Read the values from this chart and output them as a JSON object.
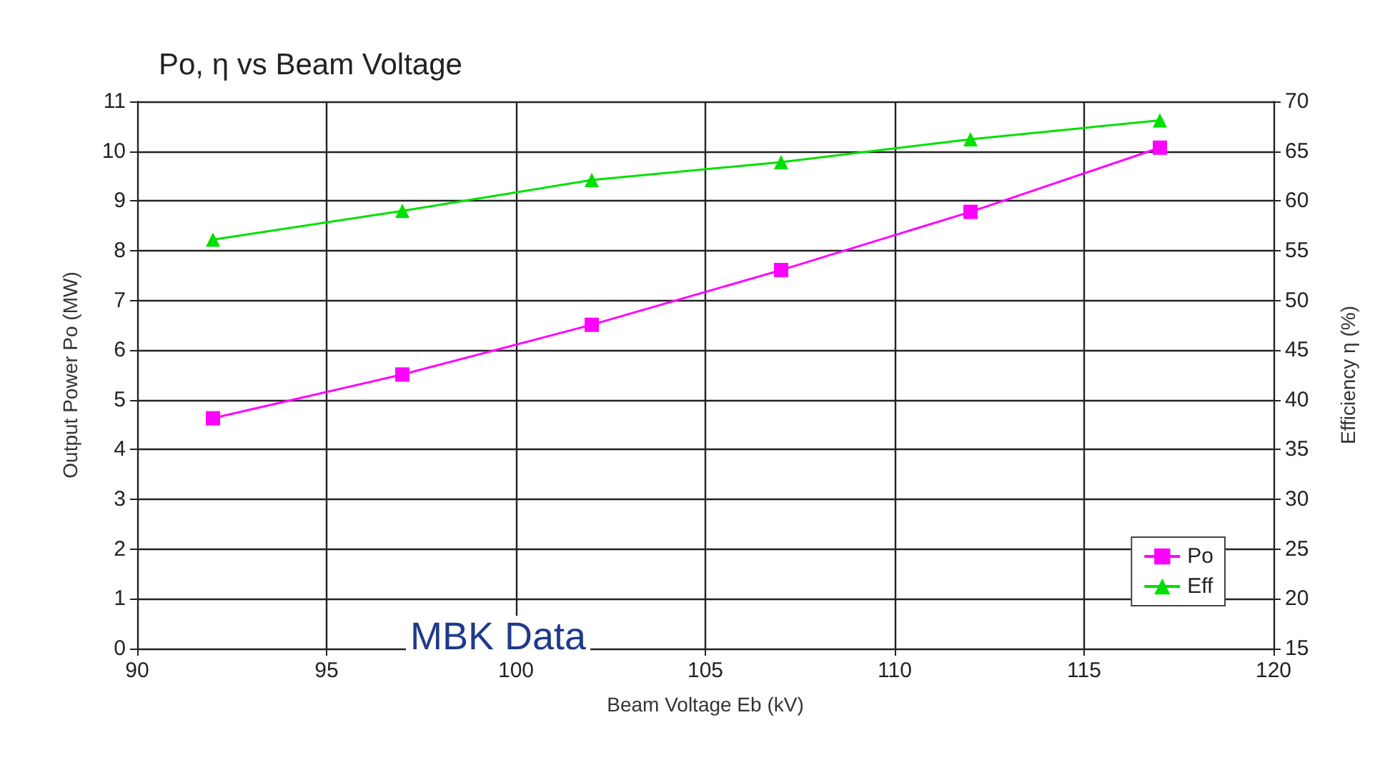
{
  "chart_data": {
    "type": "line",
    "title": "Po, η vs Beam Voltage",
    "xlabel": "Beam Voltage Eb (kV)",
    "ylabel": "Output Power Po (MW)",
    "y2label": "Efficiency η (%)",
    "x": [
      92,
      97,
      102,
      107,
      112,
      117
    ],
    "series": [
      {
        "name": "Po",
        "color": "#ff00ff",
        "marker": "square",
        "values": [
          4.63,
          5.51,
          6.51,
          7.61,
          8.78,
          10.07
        ]
      },
      {
        "name": "Eff",
        "color": "#00e000",
        "marker": "triangle",
        "axis": "y2",
        "values": [
          56.1,
          59.0,
          62.1,
          63.9,
          66.2,
          68.1
        ]
      }
    ],
    "xlim": [
      90,
      120
    ],
    "xticks": [
      90,
      95,
      100,
      105,
      110,
      115,
      120
    ],
    "ylim": [
      0,
      11
    ],
    "yticks": [
      0,
      1,
      2,
      3,
      4,
      5,
      6,
      7,
      8,
      9,
      10,
      11
    ],
    "y2lim": [
      15,
      70
    ],
    "y2ticks": [
      15,
      20,
      25,
      30,
      35,
      40,
      45,
      50,
      55,
      60,
      65,
      70
    ],
    "grid": true,
    "legend": "bottom right",
    "line_style": "solid",
    "annotations": [
      "MBK Data"
    ]
  }
}
